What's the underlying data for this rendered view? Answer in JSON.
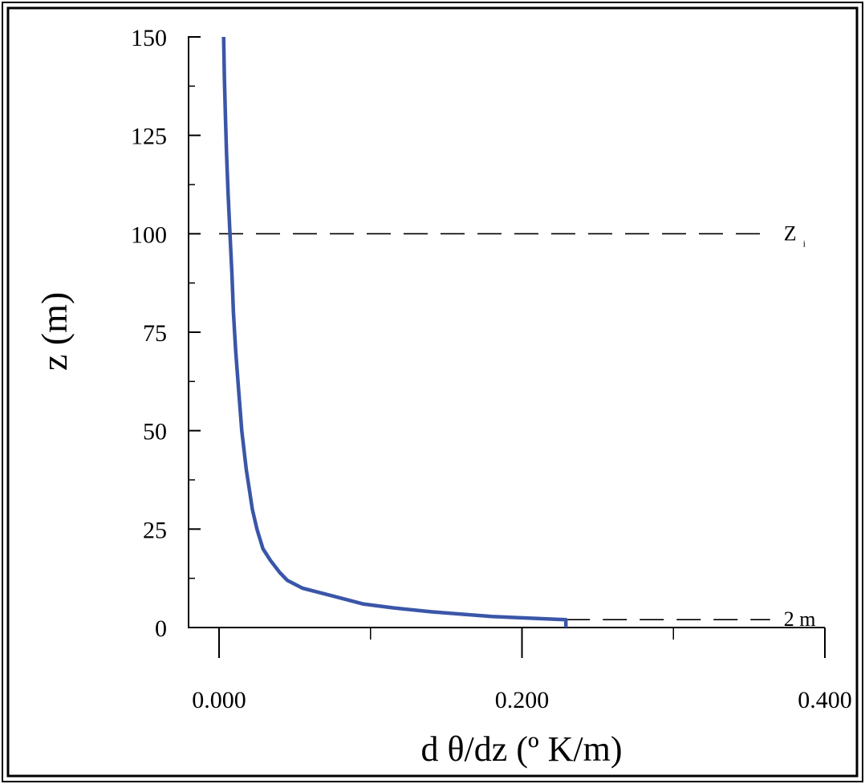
{
  "chart_data": {
    "type": "line",
    "xlabel": "d θ/dz (º K/m)",
    "ylabel": "z (m)",
    "xlim": [
      0,
      0.4
    ],
    "ylim": [
      0,
      150
    ],
    "x_ticks": [
      "0.000",
      "0.200",
      "0.400"
    ],
    "y_ticks": [
      "0",
      "25",
      "50",
      "75",
      "100",
      "125",
      "150"
    ],
    "grid": false,
    "series": [
      {
        "color": "#3a56a8",
        "points": [
          {
            "x": 0.229,
            "z": 0
          },
          {
            "x": 0.229,
            "z": 2
          },
          {
            "x": 0.18,
            "z": 2.8
          },
          {
            "x": 0.14,
            "z": 4
          },
          {
            "x": 0.115,
            "z": 5
          },
          {
            "x": 0.095,
            "z": 6
          },
          {
            "x": 0.075,
            "z": 8
          },
          {
            "x": 0.065,
            "z": 9
          },
          {
            "x": 0.055,
            "z": 10
          },
          {
            "x": 0.045,
            "z": 12
          },
          {
            "x": 0.04,
            "z": 14
          },
          {
            "x": 0.034,
            "z": 17
          },
          {
            "x": 0.029,
            "z": 20
          },
          {
            "x": 0.025,
            "z": 25
          },
          {
            "x": 0.022,
            "z": 30
          },
          {
            "x": 0.02,
            "z": 35
          },
          {
            "x": 0.018,
            "z": 40
          },
          {
            "x": 0.015,
            "z": 50
          },
          {
            "x": 0.013,
            "z": 60
          },
          {
            "x": 0.011,
            "z": 70
          },
          {
            "x": 0.0095,
            "z": 80
          },
          {
            "x": 0.0085,
            "z": 90
          },
          {
            "x": 0.0072,
            "z": 100
          },
          {
            "x": 0.006,
            "z": 110
          },
          {
            "x": 0.005,
            "z": 120
          },
          {
            "x": 0.0042,
            "z": 130
          },
          {
            "x": 0.0035,
            "z": 140
          },
          {
            "x": 0.003,
            "z": 150
          }
        ]
      }
    ],
    "reference_lines": [
      {
        "z": 100,
        "x_from": 0,
        "x_to": 0.34,
        "style": "dashed",
        "label": "Z",
        "label_sub": "i"
      },
      {
        "z": 2,
        "x_from": 0.229,
        "x_to": 0.34,
        "style": "dashed",
        "label": "2 m"
      }
    ]
  }
}
